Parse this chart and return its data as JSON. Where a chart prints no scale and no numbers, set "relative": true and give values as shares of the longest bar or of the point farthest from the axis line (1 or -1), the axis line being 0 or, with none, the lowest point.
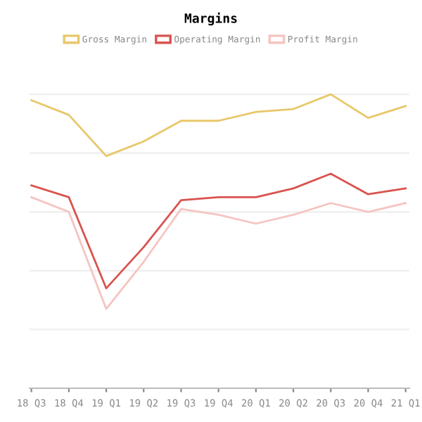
{
  "chart_data": {
    "type": "line",
    "title": "Margins",
    "relative": true,
    "grid": "y",
    "legend": "top",
    "marker": "none",
    "line_style": "solid",
    "categories": [
      "18 Q3",
      "18 Q4",
      "19 Q1",
      "19 Q2",
      "19 Q3",
      "19 Q4",
      "20 Q1",
      "20 Q2",
      "20 Q3",
      "20 Q4",
      "21 Q1"
    ],
    "series": [
      {
        "name": "Gross Margin",
        "color": "#e8c76a",
        "values": [
          0.98,
          0.93,
          0.79,
          0.84,
          0.91,
          0.91,
          0.94,
          0.95,
          1.0,
          0.92,
          0.96
        ]
      },
      {
        "name": "Operating Margin",
        "color": "#d9534f",
        "values": [
          0.69,
          0.65,
          0.34,
          0.48,
          0.64,
          0.65,
          0.65,
          0.68,
          0.73,
          0.66,
          0.68
        ]
      },
      {
        "name": "Profit Margin",
        "color": "#f5c4c0",
        "values": [
          0.65,
          0.6,
          0.27,
          0.43,
          0.61,
          0.59,
          0.56,
          0.59,
          0.63,
          0.6,
          0.63
        ]
      }
    ]
  }
}
